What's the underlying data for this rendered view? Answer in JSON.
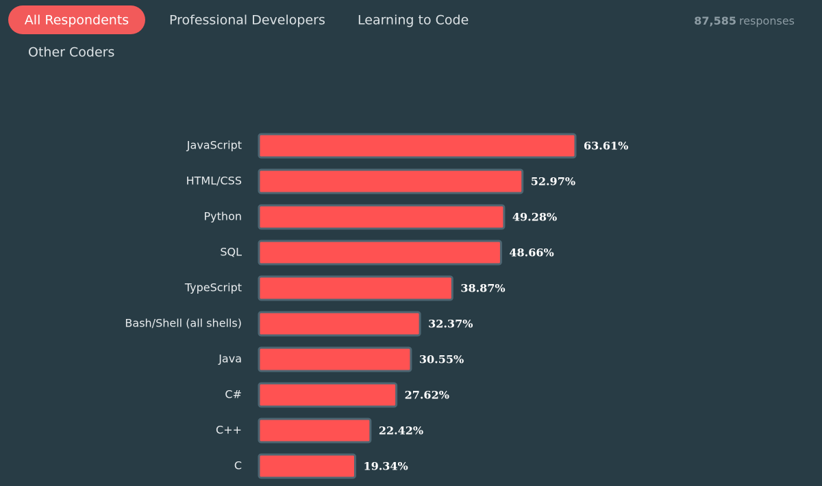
{
  "tabs": [
    "All Respondents",
    "Professional Developers",
    "Learning to Code",
    "Other Coders"
  ],
  "responses": {
    "count": "87,585",
    "label": "responses"
  },
  "chart_data": {
    "type": "bar",
    "orientation": "horizontal",
    "color": "#ff5252",
    "categories": [
      "JavaScript",
      "HTML/CSS",
      "Python",
      "SQL",
      "TypeScript",
      "Bash/Shell (all shells)",
      "Java",
      "C#",
      "C++",
      "C"
    ],
    "values": [
      63.61,
      52.97,
      49.28,
      48.66,
      38.87,
      32.37,
      30.55,
      27.62,
      22.42,
      19.34
    ],
    "value_labels": [
      "63.61%",
      "52.97%",
      "49.28%",
      "48.66%",
      "38.87%",
      "32.37%",
      "30.55%",
      "27.62%",
      "22.42%",
      "19.34%"
    ]
  }
}
